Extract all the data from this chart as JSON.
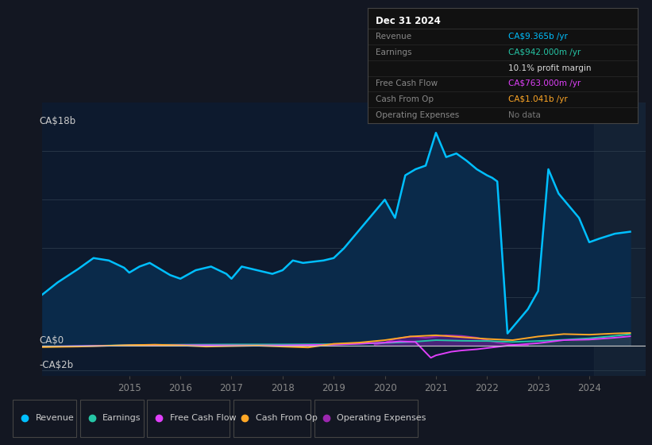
{
  "background_color": "#131722",
  "plot_bg_color": "#131722",
  "chart_area_color": "#0d1a2e",
  "legend_items": [
    {
      "label": "Revenue",
      "color": "#00bfff"
    },
    {
      "label": "Earnings",
      "color": "#26c6a6"
    },
    {
      "label": "Free Cash Flow",
      "color": "#e040fb"
    },
    {
      "label": "Cash From Op",
      "color": "#ffa726"
    },
    {
      "label": "Operating Expenses",
      "color": "#9c27b0"
    }
  ],
  "info_box": {
    "title": "Dec 31 2024",
    "rows": [
      {
        "label": "Revenue",
        "value": "CA$9.365b /yr",
        "value_color": "#00bfff"
      },
      {
        "label": "Earnings",
        "value": "CA$942.000m /yr",
        "value_color": "#26c6a6"
      },
      {
        "label": "",
        "value": "10.1% profit margin",
        "value_color": "#dddddd"
      },
      {
        "label": "Free Cash Flow",
        "value": "CA$763.000m /yr",
        "value_color": "#e040fb"
      },
      {
        "label": "Cash From Op",
        "value": "CA$1.041b /yr",
        "value_color": "#ffa726"
      },
      {
        "label": "Operating Expenses",
        "value": "No data",
        "value_color": "#777777"
      }
    ]
  },
  "revenue_x": [
    2013.3,
    2013.6,
    2014.0,
    2014.3,
    2014.6,
    2014.9,
    2015.0,
    2015.2,
    2015.4,
    2015.6,
    2015.8,
    2016.0,
    2016.3,
    2016.6,
    2016.9,
    2017.0,
    2017.2,
    2017.4,
    2017.6,
    2017.8,
    2018.0,
    2018.2,
    2018.4,
    2018.6,
    2018.8,
    2019.0,
    2019.2,
    2019.4,
    2019.6,
    2019.8,
    2020.0,
    2020.2,
    2020.4,
    2020.6,
    2020.8,
    2021.0,
    2021.2,
    2021.4,
    2021.6,
    2021.8,
    2022.0,
    2022.1,
    2022.2,
    2022.4,
    2022.6,
    2022.8,
    2023.0,
    2023.2,
    2023.4,
    2023.6,
    2023.8,
    2024.0,
    2024.2,
    2024.5,
    2024.8
  ],
  "revenue_y": [
    4.2,
    5.2,
    6.3,
    7.2,
    7.0,
    6.4,
    6.0,
    6.5,
    6.8,
    6.3,
    5.8,
    5.5,
    6.2,
    6.5,
    5.9,
    5.5,
    6.5,
    6.3,
    6.1,
    5.9,
    6.2,
    7.0,
    6.8,
    6.9,
    7.0,
    7.2,
    8.0,
    9.0,
    10.0,
    11.0,
    12.0,
    10.5,
    14.0,
    14.5,
    14.8,
    17.5,
    15.5,
    15.8,
    15.2,
    14.5,
    14.0,
    13.8,
    13.5,
    1.0,
    2.0,
    3.0,
    4.5,
    14.5,
    12.5,
    11.5,
    10.5,
    8.5,
    8.8,
    9.2,
    9.365
  ],
  "earnings_x": [
    2013.3,
    2014.0,
    2015.0,
    2016.0,
    2017.0,
    2018.0,
    2019.0,
    2019.5,
    2020.0,
    2020.5,
    2021.0,
    2021.5,
    2022.0,
    2022.5,
    2023.0,
    2023.5,
    2024.0,
    2024.5,
    2024.8
  ],
  "earnings_y": [
    -0.1,
    -0.05,
    0.05,
    0.08,
    0.1,
    0.1,
    0.12,
    0.18,
    0.22,
    0.3,
    0.45,
    0.4,
    0.38,
    0.3,
    0.38,
    0.48,
    0.6,
    0.8,
    0.942
  ],
  "fcf_x": [
    2013.3,
    2014.0,
    2015.0,
    2016.0,
    2017.0,
    2018.0,
    2019.0,
    2019.5,
    2020.0,
    2020.3,
    2020.6,
    2020.9,
    2021.0,
    2021.3,
    2021.5,
    2021.8,
    2022.0,
    2022.5,
    2023.0,
    2023.5,
    2024.0,
    2024.5,
    2024.8
  ],
  "fcf_y": [
    -0.08,
    -0.04,
    0.02,
    0.04,
    0.02,
    0.02,
    0.08,
    0.15,
    0.25,
    0.35,
    0.3,
    -1.0,
    -0.8,
    -0.5,
    -0.4,
    -0.3,
    -0.2,
    0.05,
    0.2,
    0.45,
    0.5,
    0.65,
    0.763
  ],
  "cashop_x": [
    2013.3,
    2014.0,
    2015.0,
    2015.5,
    2016.0,
    2016.5,
    2017.0,
    2017.5,
    2018.0,
    2018.5,
    2019.0,
    2019.5,
    2020.0,
    2020.5,
    2021.0,
    2021.5,
    2022.0,
    2022.5,
    2023.0,
    2023.5,
    2024.0,
    2024.5,
    2024.8
  ],
  "cashop_y": [
    -0.12,
    -0.08,
    0.04,
    0.08,
    0.02,
    -0.08,
    -0.04,
    0.0,
    -0.08,
    -0.15,
    0.15,
    0.25,
    0.45,
    0.75,
    0.85,
    0.7,
    0.55,
    0.45,
    0.75,
    0.95,
    0.9,
    1.0,
    1.041
  ],
  "opex_x": [
    2019.8,
    2020.0,
    2020.2,
    2020.5,
    2020.8,
    2021.0,
    2021.2,
    2021.5,
    2021.8,
    2022.0,
    2022.2,
    2022.5,
    2022.8
  ],
  "opex_y": [
    0.08,
    0.25,
    0.55,
    0.75,
    0.65,
    0.75,
    0.85,
    0.8,
    0.65,
    0.45,
    0.25,
    0.08,
    0.04
  ],
  "gray_fill_x": [
    2019.8,
    2020.0,
    2020.2,
    2020.5,
    2020.8,
    2021.0,
    2021.2,
    2021.5,
    2021.8,
    2022.0,
    2022.2,
    2022.5,
    2022.8,
    2023.0,
    2023.5,
    2024.0,
    2024.5,
    2024.8
  ],
  "gray_fill_y": [
    0.04,
    0.12,
    0.28,
    0.45,
    0.42,
    0.48,
    0.52,
    0.48,
    0.38,
    0.28,
    0.18,
    0.12,
    0.08,
    0.18,
    0.32,
    0.48,
    0.58,
    0.65
  ],
  "xlim": [
    2013.3,
    2025.1
  ],
  "ylim": [
    -2.5,
    20.0
  ],
  "y_ticks_data": [
    -2,
    0,
    4,
    8,
    12,
    16
  ],
  "y_labels": [
    {
      "y": 18,
      "text": "CA$18b"
    },
    {
      "y": 0,
      "text": "CA$0"
    },
    {
      "y": -2,
      "text": "-CA$2b"
    }
  ],
  "x_ticks": [
    2015,
    2016,
    2017,
    2018,
    2019,
    2020,
    2021,
    2022,
    2023,
    2024
  ],
  "shade_start": 2024.1
}
